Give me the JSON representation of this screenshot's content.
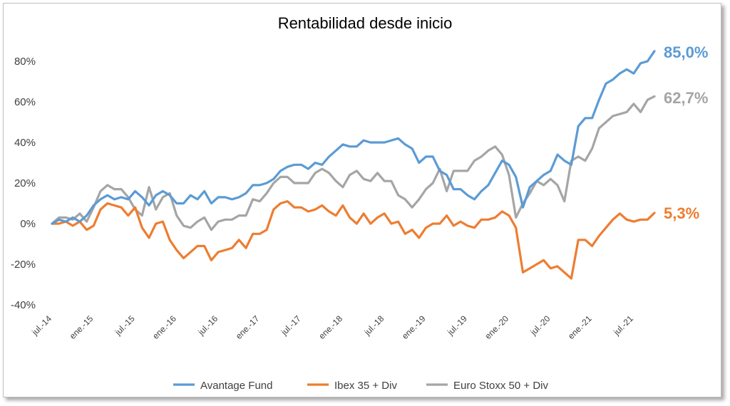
{
  "chart_data": {
    "type": "line",
    "title": "Rentabilidad desde inicio",
    "xlabel": "",
    "ylabel": "",
    "ylim": [
      -40,
      90
    ],
    "y_ticks": [
      80,
      60,
      40,
      20,
      0,
      -20,
      -40
    ],
    "y_tick_labels": [
      "80%",
      "60%",
      "40%",
      "20%",
      "0%",
      "-20%",
      "-40%"
    ],
    "x_tick_labels": [
      "jul.-14",
      "ene.-15",
      "jul.-15",
      "ene.-16",
      "jul.-16",
      "ene.-17",
      "jul.-17",
      "ene.-18",
      "jul.-18",
      "ene.-19",
      "jul.-19",
      "ene.-20",
      "jul.-20",
      "ene.-21",
      "jul.-21"
    ],
    "x_tick_months": [
      0,
      6,
      12,
      18,
      24,
      30,
      36,
      42,
      48,
      54,
      60,
      66,
      72,
      78,
      84
    ],
    "x_range_months": [
      0,
      88
    ],
    "grid": false,
    "legend_position": "bottom",
    "series": [
      {
        "name": "Avantage Fund",
        "color": "#5b9bd5",
        "end_label": "85,0%",
        "values": [
          0,
          2,
          1,
          3,
          1,
          4,
          9,
          12,
          14,
          12,
          13,
          12,
          16,
          13,
          9,
          14,
          16,
          14,
          10,
          10,
          14,
          12,
          16,
          10,
          13,
          13,
          12,
          13,
          15,
          19,
          19,
          20,
          22,
          26,
          28,
          29,
          29,
          27,
          30,
          29,
          33,
          36,
          39,
          38,
          38,
          41,
          40,
          40,
          40,
          41,
          42,
          39,
          37,
          30,
          33,
          33,
          26,
          24,
          17,
          17,
          14,
          12,
          16,
          19,
          25,
          31,
          29,
          23,
          8,
          18,
          21,
          24,
          26,
          34,
          31,
          29,
          48,
          52,
          52,
          61,
          69,
          71,
          74,
          76,
          74,
          79,
          80,
          85
        ]
      },
      {
        "name": "Ibex 35 + Div",
        "color": "#ed7d31",
        "end_label": "5,3%",
        "values": [
          0,
          0,
          1,
          -1,
          1,
          -3,
          -1,
          7,
          10,
          9,
          8,
          4,
          8,
          -2,
          -7,
          0,
          1,
          -8,
          -13,
          -17,
          -14,
          -11,
          -11,
          -18,
          -14,
          -13,
          -12,
          -8,
          -12,
          -5,
          -5,
          -3,
          7,
          10,
          11,
          8,
          8,
          6,
          7,
          9,
          6,
          4,
          9,
          3,
          0,
          5,
          0,
          3,
          5,
          0,
          1,
          -5,
          -3,
          -7,
          -2,
          0,
          0,
          4,
          -1,
          1,
          -1,
          -2,
          2,
          2,
          3,
          6,
          4,
          -2,
          -24,
          -22,
          -20,
          -18,
          -22,
          -21,
          -24,
          -27,
          -8,
          -8,
          -11,
          -6,
          -2,
          2,
          5,
          2,
          1,
          2,
          2,
          5.3
        ]
      },
      {
        "name": "Euro Stoxx 50 + Div",
        "color": "#a5a5a5",
        "end_label": "62,7%",
        "values": [
          0,
          3,
          3,
          2,
          5,
          1,
          8,
          16,
          19,
          17,
          17,
          13,
          7,
          4,
          18,
          7,
          13,
          15,
          4,
          -1,
          -2,
          1,
          3,
          -3,
          1,
          2,
          2,
          4,
          4,
          12,
          11,
          15,
          20,
          23,
          23,
          20,
          20,
          20,
          25,
          27,
          25,
          21,
          18,
          24,
          26,
          22,
          21,
          25,
          21,
          21,
          14,
          12,
          8,
          12,
          17,
          20,
          27,
          16,
          26,
          26,
          26,
          31,
          33,
          36,
          38,
          34,
          24,
          3,
          10,
          15,
          21,
          19,
          22,
          19,
          11,
          31,
          33,
          31,
          37,
          47,
          50,
          53,
          54,
          55,
          59,
          55,
          61,
          62.7
        ]
      }
    ]
  }
}
